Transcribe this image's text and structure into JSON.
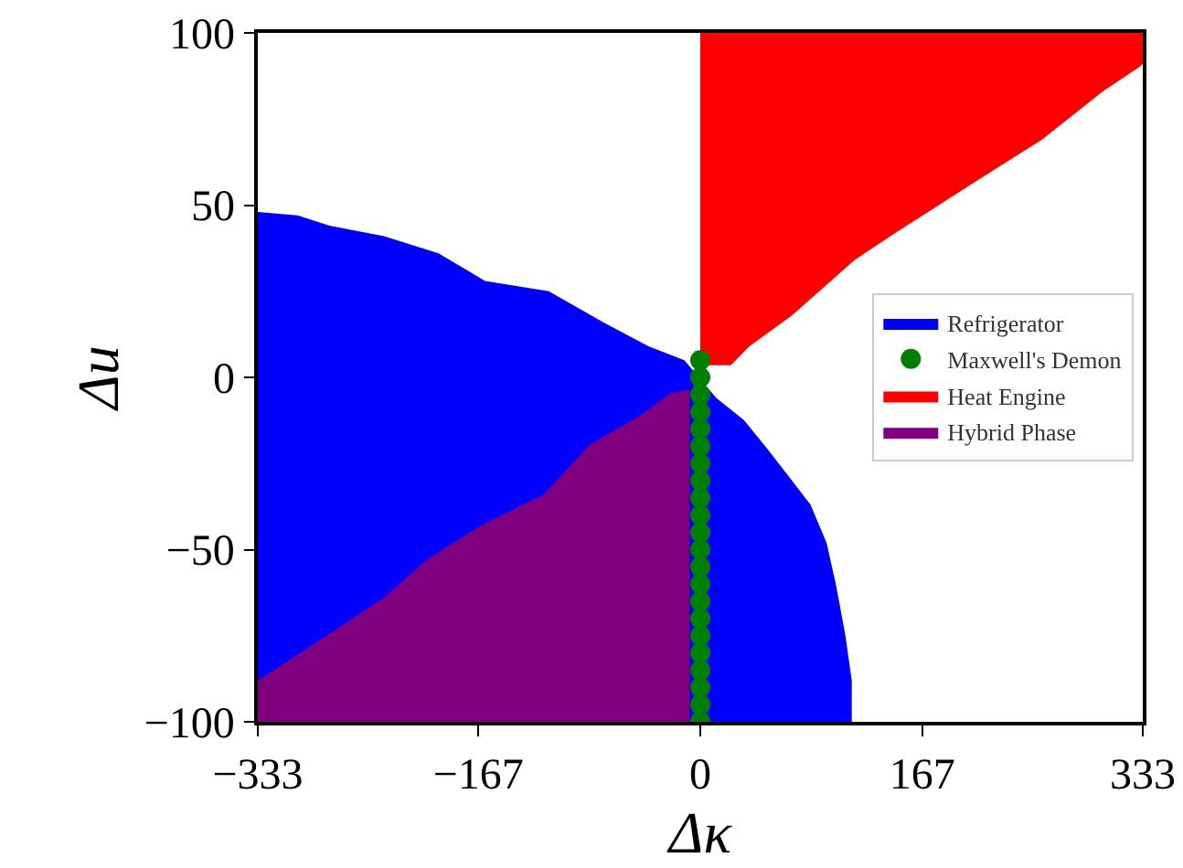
{
  "chart_data": {
    "type": "line",
    "xlabel": "Δκ",
    "ylabel": "Δu",
    "xlim": [
      -333,
      333
    ],
    "ylim": [
      -100,
      100
    ],
    "xticks": [
      -333,
      -167,
      0,
      167,
      333
    ],
    "yticks": [
      -100,
      -50,
      0,
      50,
      100
    ],
    "legend": "right",
    "series": [
      {
        "name": "Refrigerator",
        "color": "#0000ff",
        "x": [
          -333,
          -303,
          -279,
          -238,
          -197,
          -162,
          -114,
          -73,
          -39,
          -12,
          12,
          33,
          51,
          69,
          83,
          95,
          102,
          109,
          114,
          114
        ],
        "values": [
          null,
          null,
          null,
          null,
          null,
          null,
          null,
          null,
          null,
          null,
          null,
          null,
          null,
          null,
          null,
          null,
          null,
          null,
          null,
          null
        ],
        "upper": [
          48,
          47,
          44,
          41,
          36,
          28,
          25,
          16,
          9,
          5,
          -6,
          -12.5,
          -21,
          -30,
          -37,
          -48,
          -60,
          -74.5,
          -88,
          -100
        ],
        "lower": [
          -100,
          -100,
          -100,
          -100,
          -100,
          -100,
          -100,
          -100,
          -100,
          -100,
          -100,
          -100,
          -100,
          -100,
          -100,
          -100,
          -100,
          -100,
          -100,
          -100
        ]
      },
      {
        "name": "Maxwell's Demon",
        "color": "#008000",
        "type": "scatter",
        "marker": "circle",
        "x": [
          0,
          0,
          0,
          0,
          0,
          0,
          0,
          0,
          0,
          0,
          0,
          0,
          0,
          0,
          0,
          0,
          0,
          0,
          0,
          0,
          0,
          0
        ],
        "values": [
          -100,
          -95,
          -90,
          -85,
          -80,
          -75,
          -70,
          -65,
          -60,
          -55,
          -50,
          -45,
          -40,
          -35,
          -30,
          -25,
          -20,
          -15,
          -10,
          -5,
          0,
          5
        ]
      },
      {
        "name": "Heat Engine",
        "color": "#ff0000",
        "x": [
          0,
          23,
          37,
          69,
          116,
          147,
          212,
          257,
          303,
          330,
          333
        ],
        "values": [
          null,
          null,
          null,
          null,
          null,
          null,
          null,
          null,
          null,
          null,
          null
        ],
        "upper": [
          100,
          100,
          100,
          100,
          100,
          100,
          100,
          100,
          100,
          100,
          100
        ],
        "lower": [
          3.5,
          3.5,
          9,
          18,
          34,
          42,
          58,
          69,
          83,
          90,
          91
        ]
      },
      {
        "name": "Hybrid Phase",
        "color": "#800080",
        "x": [
          -333,
          -293,
          -238,
          -206,
          -165,
          -118,
          -83,
          -45,
          -22,
          -8
        ],
        "values": [
          null,
          null,
          null,
          null,
          null,
          null,
          null,
          null,
          null,
          null
        ],
        "upper": [
          -88,
          -78,
          -64,
          -53,
          -43,
          -34,
          -19.5,
          -11,
          -4.5,
          -3.5
        ],
        "lower": [
          -100,
          -100,
          -100,
          -100,
          -100,
          -100,
          -100,
          -100,
          -100,
          -100
        ]
      }
    ]
  }
}
